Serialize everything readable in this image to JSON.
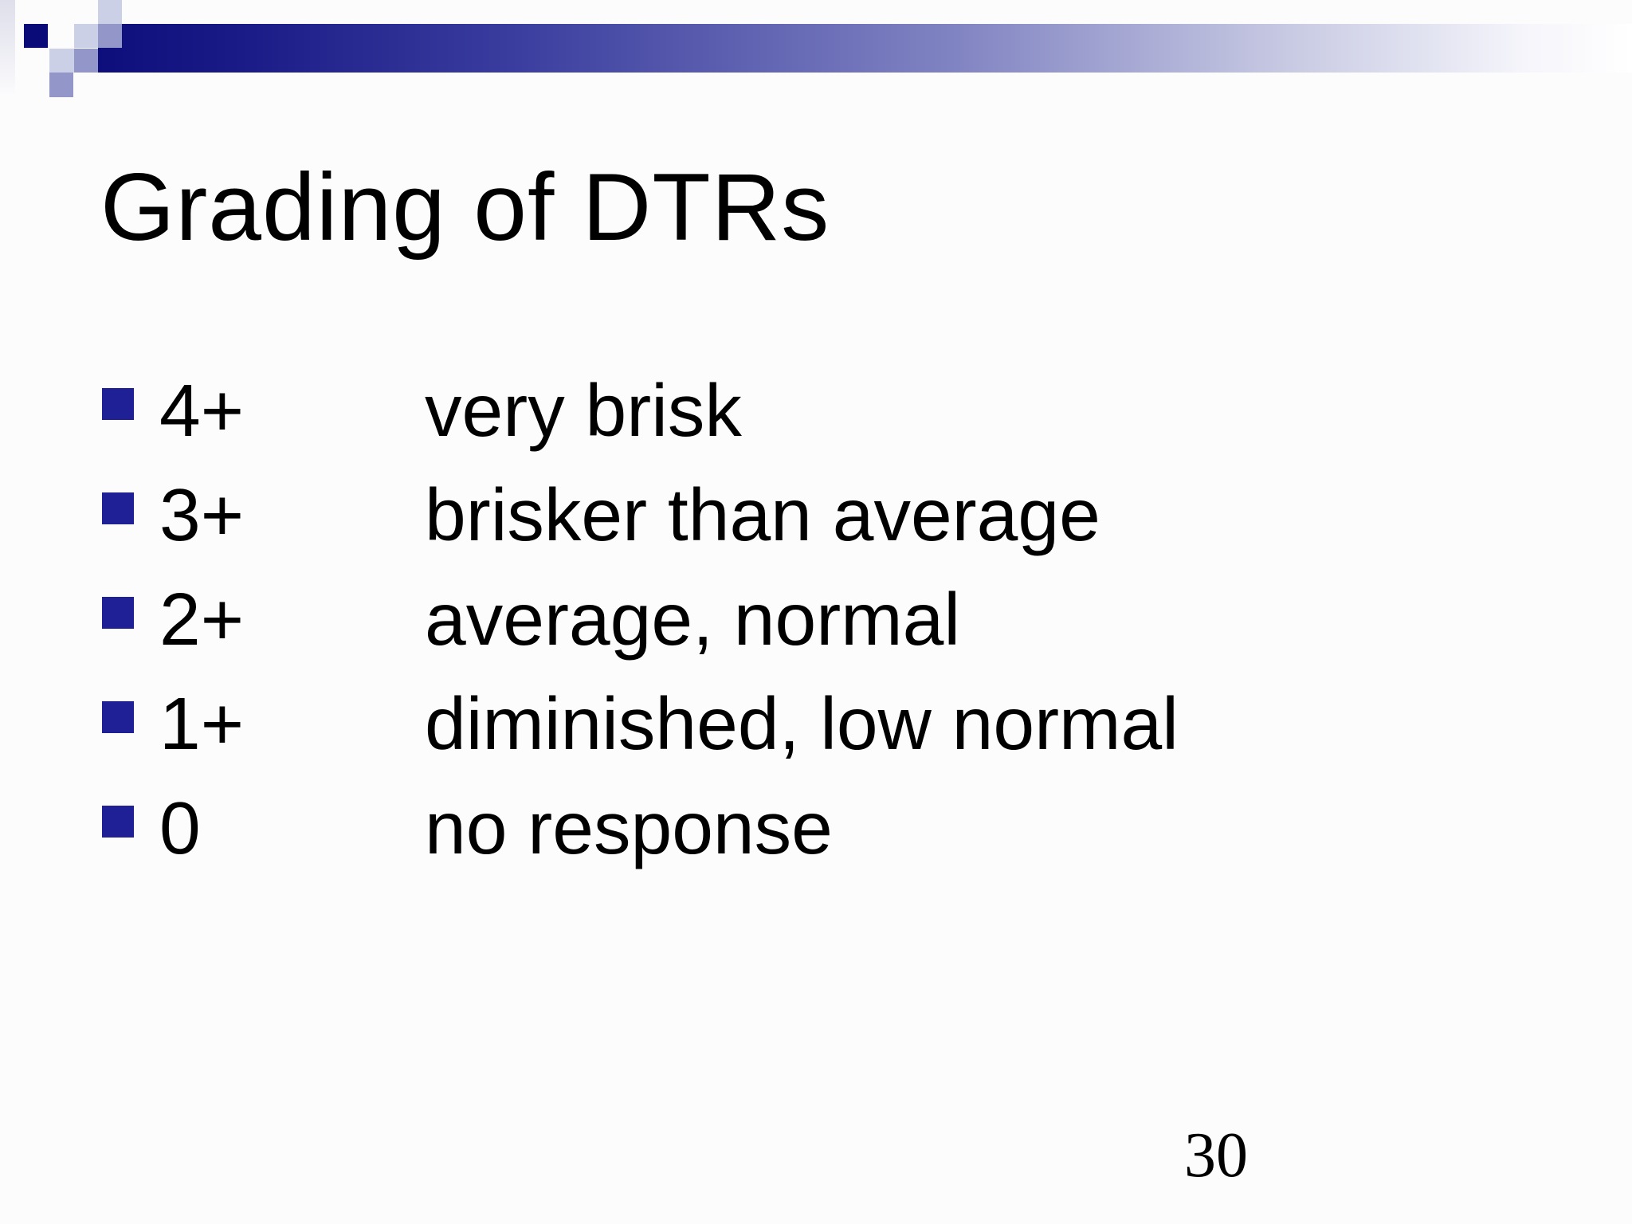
{
  "slide": {
    "title": "Grading of DTRs",
    "page_number": "30",
    "bullets": [
      {
        "grade": "4+",
        "description": "very brisk"
      },
      {
        "grade": "3+",
        "description": "brisker than average"
      },
      {
        "grade": "2+",
        "description": "average, normal"
      },
      {
        "grade": "1+",
        "description": "diminished, low normal"
      },
      {
        "grade": "0",
        "description": "no response"
      }
    ],
    "colors": {
      "bullet_square": "#1f1f96",
      "bar_gradient_start": "#0d0d7c",
      "bar_gradient_end": "#ffffff",
      "corner_square_navy": "#0a0a78",
      "corner_square_medium": "#9396c9",
      "corner_square_light": "#ccd0e6",
      "text": "#000000",
      "background": "#fcfcfd"
    }
  }
}
